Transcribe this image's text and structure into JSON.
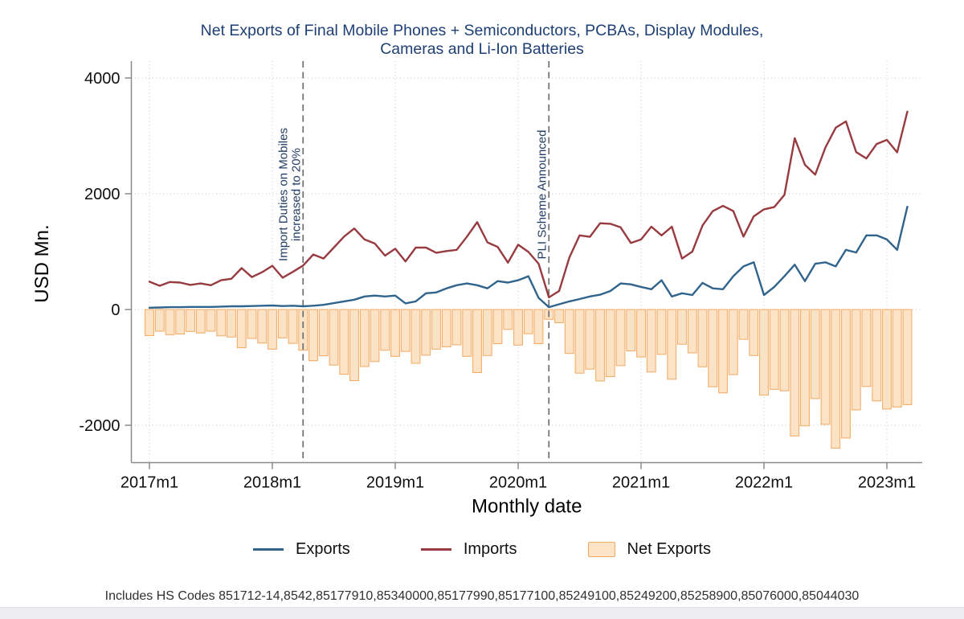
{
  "page": {
    "bottom_strip_color": "#ededf0"
  },
  "chart_data": {
    "type": "line+bar",
    "title_lines": [
      "Net Exports of Final Mobile Phones + Semiconductors, PCBAs, Display Modules,",
      "Cameras and Li-Ion Batteries"
    ],
    "title_color": "#1e3f74",
    "ylabel": "USD Mn.",
    "xlabel": "Monthly date",
    "ylim": [
      -2600,
      4200
    ],
    "yticks": [
      4000,
      2000,
      0,
      -2000
    ],
    "xticks": [
      {
        "label": "2017m1",
        "month_index": 0
      },
      {
        "label": "2018m1",
        "month_index": 12
      },
      {
        "label": "2019m1",
        "month_index": 24
      },
      {
        "label": "2020m1",
        "month_index": 36
      },
      {
        "label": "2021m1",
        "month_index": 48
      },
      {
        "label": "2022m1",
        "month_index": 60
      },
      {
        "label": "2023m1",
        "month_index": 72
      }
    ],
    "months_start": "2017m1",
    "months_end": "2023m3",
    "months_count": 75,
    "grid": "dotted",
    "legend_position": "bottom",
    "series": [
      {
        "name": "Exports",
        "type": "line",
        "color": "#31648c",
        "values": [
          30,
          35,
          40,
          40,
          45,
          45,
          45,
          50,
          55,
          55,
          60,
          65,
          70,
          60,
          65,
          55,
          65,
          80,
          110,
          140,
          170,
          225,
          240,
          225,
          240,
          105,
          140,
          280,
          295,
          365,
          420,
          450,
          420,
          365,
          490,
          465,
          505,
          575,
          200,
          40,
          90,
          140,
          180,
          225,
          255,
          320,
          450,
          435,
          390,
          350,
          505,
          225,
          280,
          250,
          460,
          365,
          350,
          575,
          745,
          815,
          250,
          390,
          575,
          775,
          490,
          790,
          815,
          745,
          1030,
          985,
          1280,
          1280,
          1210,
          1030,
          1775
        ]
      },
      {
        "name": "Imports",
        "type": "line",
        "color": "#983b40",
        "values": [
          480,
          410,
          475,
          465,
          425,
          450,
          420,
          505,
          530,
          715,
          560,
          645,
          755,
          550,
          650,
          760,
          950,
          880,
          1070,
          1260,
          1400,
          1210,
          1140,
          930,
          1050,
          830,
          1070,
          1070,
          980,
          1010,
          1030,
          1260,
          1510,
          1160,
          1080,
          810,
          1120,
          995,
          790,
          210,
          320,
          900,
          1280,
          1255,
          1490,
          1480,
          1420,
          1150,
          1210,
          1430,
          1280,
          1430,
          880,
          1000,
          1450,
          1700,
          1790,
          1700,
          1260,
          1610,
          1730,
          1770,
          1980,
          2960,
          2500,
          2330,
          2800,
          3140,
          3250,
          2720,
          2610,
          2860,
          2930,
          2715,
          3420
        ]
      },
      {
        "name": "Net Exports",
        "type": "bar",
        "fill": "#fce3c5",
        "stroke": "#f2a963",
        "values": [
          -450,
          -375,
          -435,
          -425,
          -380,
          -405,
          -375,
          -455,
          -475,
          -660,
          -500,
          -580,
          -685,
          -490,
          -585,
          -705,
          -885,
          -800,
          -960,
          -1120,
          -1230,
          -985,
          -900,
          -705,
          -810,
          -725,
          -930,
          -790,
          -685,
          -645,
          -610,
          -810,
          -1090,
          -795,
          -590,
          -345,
          -615,
          -420,
          -590,
          -170,
          -230,
          -760,
          -1100,
          -1030,
          -1235,
          -1160,
          -970,
          -715,
          -820,
          -1080,
          -775,
          -1205,
          -600,
          -750,
          -990,
          -1335,
          -1440,
          -1125,
          -515,
          -795,
          -1480,
          -1380,
          -1405,
          -2185,
          -2010,
          -1540,
          -1985,
          -2395,
          -2220,
          -1735,
          -1330,
          -1580,
          -1720,
          -1685,
          -1645
        ]
      }
    ],
    "annotations": [
      {
        "label_lines": [
          "Import Duties on Mobiles",
          "increased to 20%"
        ],
        "month": "2018m4",
        "month_index": 15
      },
      {
        "label_lines": [
          "PLI Scheme Announced"
        ],
        "month": "2020m4",
        "month_index": 39
      }
    ],
    "annotation_color": "#223c63",
    "note": "Includes HS Codes 851712-14,8542,85177910,85340000,85177990,85177100,85249100,85249200,85258900,85076000,85044030"
  }
}
